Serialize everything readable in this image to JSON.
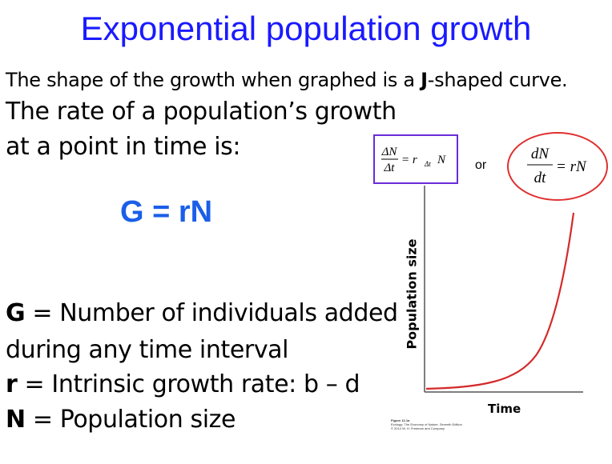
{
  "slide": {
    "title": "Exponential population growth",
    "intro_text": "The shape of the growth when graphed is a ",
    "intro_bold": "J",
    "intro_rest": "-shaped curve.",
    "rate_line1": "The rate of a population’s growth",
    "rate_line2": "at a point in time is:",
    "equation": "G = rN",
    "definitions": [
      {
        "term": "G",
        "text": " = Number of individuals added"
      },
      {
        "term": "",
        "text": "during any time interval"
      },
      {
        "term": "r",
        "text": " = Intrinsic growth rate: b – d"
      },
      {
        "term": "N",
        "text": " = Population size"
      }
    ]
  },
  "formulas": {
    "discrete_num": "ΔN",
    "discrete_den": "Δt",
    "discrete_rhs": "= r",
    "discrete_sub": "Δt",
    "discrete_end": "N",
    "or_label": "or",
    "continuous_num": "dN",
    "continuous_den": "dt",
    "continuous_rhs": "= rN"
  },
  "graph": {
    "y_label": "Population size",
    "x_label": "Time",
    "caption_lines": [
      "Figure 12.1a",
      "Ecology: The Economy of Nature, Seventh Edition",
      "© 2014 W. H. Freeman and Company"
    ]
  },
  "colors": {
    "title": "#1a1aff",
    "equation": "#1a5fe8",
    "box_border": "#6a2bd9",
    "circle": "#e03030",
    "curve": "#d42a2a"
  }
}
